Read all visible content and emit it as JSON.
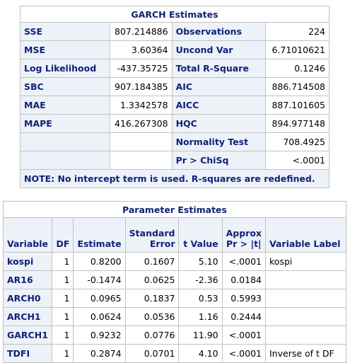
{
  "garch": {
    "title": "GARCH Estimates",
    "rows": [
      {
        "l1": "SSE",
        "v1": "807.214886",
        "l2": "Observations",
        "v2": "224"
      },
      {
        "l1": "MSE",
        "v1": "3.60364",
        "l2": "Uncond Var",
        "v2": "6.71010621"
      },
      {
        "l1": "Log Likelihood",
        "v1": "-437.35725",
        "l2": "Total R-Square",
        "v2": "0.1246"
      },
      {
        "l1": "SBC",
        "v1": "907.184385",
        "l2": "AIC",
        "v2": "886.714508"
      },
      {
        "l1": "MAE",
        "v1": "1.3342578",
        "l2": "AICC",
        "v2": "887.101605"
      },
      {
        "l1": "MAPE",
        "v1": "416.267308",
        "l2": "HQC",
        "v2": "894.977148"
      },
      {
        "l1": "",
        "v1": "",
        "l2": "Normality Test",
        "v2": "708.4925"
      },
      {
        "l1": "",
        "v1": "",
        "l2": "Pr > ChiSq",
        "v2": "<.0001"
      }
    ],
    "note": "NOTE: No intercept term is used. R-squares are redefined."
  },
  "params": {
    "title": "Parameter Estimates",
    "headers": {
      "variable": "Variable",
      "df": "DF",
      "estimate": "Estimate",
      "stderr_1": "Standard",
      "stderr_2": "Error",
      "tvalue": "t Value",
      "prob_1": "Approx",
      "prob_2": "Pr > |t|",
      "label": "Variable Label"
    },
    "rows": [
      {
        "variable": "kospi",
        "df": "1",
        "estimate": "0.8200",
        "stderr": "0.1607",
        "tvalue": "5.10",
        "prob": "<.0001",
        "label": "kospi"
      },
      {
        "variable": "AR16",
        "df": "1",
        "estimate": "-0.1474",
        "stderr": "0.0625",
        "tvalue": "-2.36",
        "prob": "0.0184",
        "label": ""
      },
      {
        "variable": "ARCH0",
        "df": "1",
        "estimate": "0.0965",
        "stderr": "0.1837",
        "tvalue": "0.53",
        "prob": "0.5993",
        "label": ""
      },
      {
        "variable": "ARCH1",
        "df": "1",
        "estimate": "0.0624",
        "stderr": "0.0536",
        "tvalue": "1.16",
        "prob": "0.2444",
        "label": ""
      },
      {
        "variable": "GARCH1",
        "df": "1",
        "estimate": "0.9232",
        "stderr": "0.0776",
        "tvalue": "11.90",
        "prob": "<.0001",
        "label": ""
      },
      {
        "variable": "TDFI",
        "df": "1",
        "estimate": "0.2874",
        "stderr": "0.0701",
        "tvalue": "4.10",
        "prob": "<.0001",
        "label": "Inverse of t DF"
      }
    ]
  },
  "colors": {
    "header_bg": "#edf2f9",
    "header_text": "#112277",
    "border": "#c1c1c1"
  }
}
